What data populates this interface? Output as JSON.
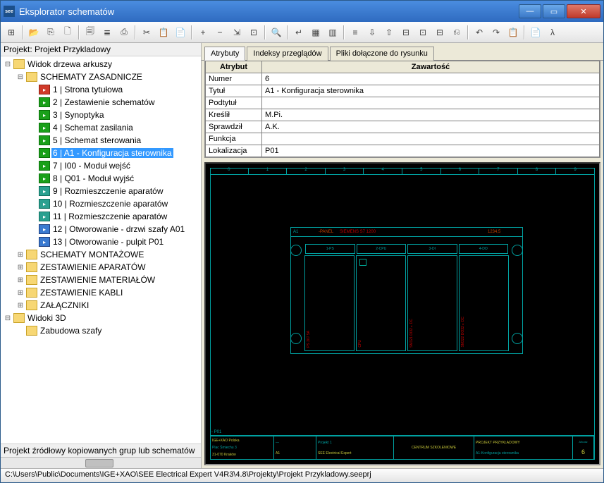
{
  "window": {
    "title": "Eksplorator schematów"
  },
  "winbtns": {
    "min": "—",
    "max": "▭",
    "close": "✕"
  },
  "toolbar_icons": [
    "⊞",
    "📂",
    "⎘",
    "🗋",
    "🗐",
    "≣",
    "⎙",
    "✂",
    "📋",
    "📄",
    "+",
    "−",
    "⇲",
    "⊡",
    "🔍",
    "↵",
    "▦",
    "▥",
    "≡",
    "⇩",
    "⇧",
    "⊟",
    "⊡",
    "⊟",
    "⎌",
    "↶",
    "↷",
    "📋",
    "📄",
    "λ"
  ],
  "project_label": "Projekt: Projekt Przykladowy",
  "tree": [
    {
      "d": 0,
      "exp": "-",
      "icon": "folder-y",
      "label": "Widok drzewa arkuszy"
    },
    {
      "d": 1,
      "exp": "-",
      "icon": "folder-o",
      "label": "SCHEMATY ZASADNICZE"
    },
    {
      "d": 2,
      "exp": "",
      "icon": "page-r",
      "label": "1 | Strona tytułowa"
    },
    {
      "d": 2,
      "exp": "",
      "icon": "page-g",
      "label": "2 | Zestawienie schematów"
    },
    {
      "d": 2,
      "exp": "",
      "icon": "page-g",
      "label": "3 | Synoptyka"
    },
    {
      "d": 2,
      "exp": "",
      "icon": "page-g",
      "label": "4 | Schemat zasilania"
    },
    {
      "d": 2,
      "exp": "",
      "icon": "page-g",
      "label": "5 | Schemat sterowania"
    },
    {
      "d": 2,
      "exp": "",
      "icon": "page-g",
      "label": "6 | A1 - Konfiguracja sterownika",
      "sel": true
    },
    {
      "d": 2,
      "exp": "",
      "icon": "page-g",
      "label": "7 | I00 - Moduł wejść"
    },
    {
      "d": 2,
      "exp": "",
      "icon": "page-g",
      "label": "8 | Q01 - Moduł wyjść"
    },
    {
      "d": 2,
      "exp": "",
      "icon": "page-t",
      "label": "9 | Rozmieszczenie aparatów"
    },
    {
      "d": 2,
      "exp": "",
      "icon": "page-t",
      "label": "10 | Rozmieszczenie aparatów"
    },
    {
      "d": 2,
      "exp": "",
      "icon": "page-t",
      "label": "11 | Rozmieszczenie aparatów"
    },
    {
      "d": 2,
      "exp": "",
      "icon": "page-b",
      "label": "12 | Otworowanie - drzwi szafy A01"
    },
    {
      "d": 2,
      "exp": "",
      "icon": "page-b",
      "label": "13 | Otworowanie - pulpit P01"
    },
    {
      "d": 1,
      "exp": "+",
      "icon": "folder-y",
      "label": "SCHEMATY MONTAŻOWE"
    },
    {
      "d": 1,
      "exp": "+",
      "icon": "folder-y",
      "label": "ZESTAWIENIE APARATÓW"
    },
    {
      "d": 1,
      "exp": "+",
      "icon": "folder-y",
      "label": "ZESTAWIENIE MATERIAŁÓW"
    },
    {
      "d": 1,
      "exp": "+",
      "icon": "folder-y",
      "label": "ZESTAWIENIE KABLI"
    },
    {
      "d": 1,
      "exp": "+",
      "icon": "folder-y",
      "label": "ZAŁĄCZNIKI"
    },
    {
      "d": 0,
      "exp": "-",
      "icon": "folder-y",
      "label": "Widoki 3D"
    },
    {
      "d": 1,
      "exp": "",
      "icon": "folder-y",
      "label": "Zabudowa szafy"
    }
  ],
  "bottom_label": "Projekt źródłowy kopiowanych grup lub schematów",
  "tabs": [
    "Atrybuty",
    "Indeksy przeglądów",
    "Pliki dołączone do rysunku"
  ],
  "attr_head": {
    "k": "Atrybut",
    "v": "Zawartość"
  },
  "attrs": [
    {
      "k": "Numer",
      "v": "6"
    },
    {
      "k": "Tytuł",
      "v": "A1 - Konfiguracja sterownika"
    },
    {
      "k": "Podtytuł",
      "v": ""
    },
    {
      "k": "Kreślił",
      "v": "M.Pi."
    },
    {
      "k": "Sprawdził",
      "v": "A.K."
    },
    {
      "k": "Funkcja",
      "v": ""
    },
    {
      "k": "Lokalizacja",
      "v": "P01"
    }
  ],
  "status": "C:\\Users\\Public\\Documents\\IGE+XAO\\SEE Electrical Expert V4R3\\4.8\\Projekty\\Projekt Przykladowy.seeprj",
  "cad": {
    "ruler": [
      "0",
      "1",
      "2",
      "3",
      "4",
      "5",
      "6",
      "7",
      "8",
      "9"
    ],
    "panel_hdr": {
      "a": "A1",
      "b": "-PANEL",
      "c": "SIEMENS S7 1200",
      "d": "1234,5"
    },
    "row": [
      "1-PS",
      "2-CPU",
      "3-DI",
      "4-DO"
    ],
    "slot_txt": [
      "PS 307 5A",
      "CPU",
      "SM321 DI32×DC",
      "SM322 DO32×DC"
    ],
    "pdi": "- P01",
    "tb": {
      "l1": "IGE+XAO Polska",
      "l2": "Plac Śmiechu 3",
      "l3": "31-070 Kraków",
      "c1": "CENTRUM SZKOLENIOWE",
      "r1": "PROJEKT PRZYKŁADOWY",
      "r2": "A1-Konfiguracja sterownika",
      "p1": "Projekt 1",
      "p2": "SEE Electrical Expert",
      "num": "6"
    }
  }
}
